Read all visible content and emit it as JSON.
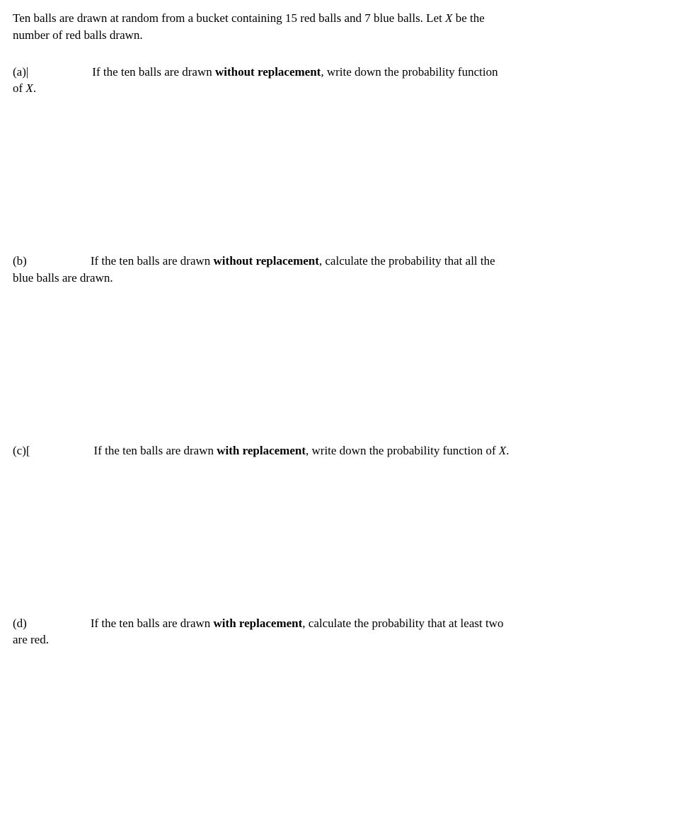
{
  "intro": {
    "line1_pre": "Ten balls are drawn at random from a bucket containing 15 red balls and 7 blue balls. Let ",
    "line1_var": "X",
    "line1_post": " be the",
    "line2": "number of red balls drawn."
  },
  "parts": {
    "a": {
      "label": "(a)",
      "cursor": "|",
      "text_pre": "If the ten balls are drawn ",
      "text_bold": "without replacement",
      "text_post": ", write down the probability function",
      "cont_pre": "of ",
      "cont_var": "X",
      "cont_post": "."
    },
    "b": {
      "label": "(b)",
      "cursor": "",
      "text_pre": "If the ten balls are drawn ",
      "text_bold": "without replacement",
      "text_post": ", calculate the probability that all the",
      "cont": "blue balls are drawn."
    },
    "c": {
      "label": "(c)",
      "cursor": "[",
      "text_pre": "If the ten balls are drawn ",
      "text_bold": "with replacement",
      "text_post_pre": ", write down the probability function of ",
      "text_post_var": "X",
      "text_post_post": "."
    },
    "d": {
      "label": "(d)",
      "text_pre": "If the ten balls are drawn ",
      "text_bold": "with replacement",
      "text_post": ", calculate the probability that at least two",
      "cont": "are red."
    }
  }
}
